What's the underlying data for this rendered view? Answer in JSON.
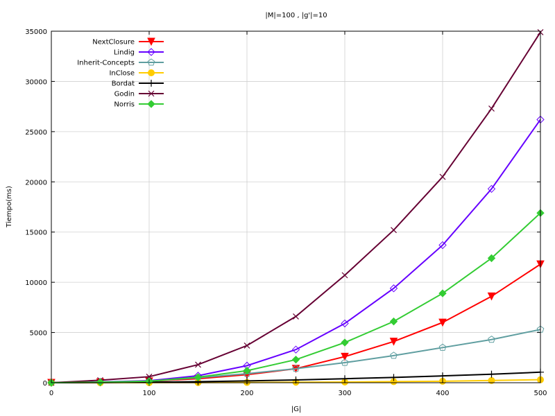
{
  "chart_data": {
    "type": "line",
    "title": "|M|=100 , |g'|=10",
    "xlabel": "|G|",
    "ylabel": "Tiempo(ms)",
    "xlim": [
      0,
      500
    ],
    "ylim": [
      0,
      35000
    ],
    "x_ticks": [
      0,
      100,
      200,
      300,
      400,
      500
    ],
    "y_ticks": [
      0,
      5000,
      10000,
      15000,
      20000,
      25000,
      30000,
      35000
    ],
    "grid": true,
    "legend_position": "top-left",
    "x": [
      0,
      50,
      100,
      150,
      200,
      250,
      300,
      350,
      400,
      450,
      500
    ],
    "series": [
      {
        "name": "NextClosure",
        "color": "#ff0000",
        "marker": "triangle-down",
        "values": [
          0,
          50,
          150,
          400,
          800,
          1400,
          2600,
          4100,
          6000,
          8600,
          11800
        ]
      },
      {
        "name": "Lindig",
        "color": "#6600ff",
        "marker": "diamond-open",
        "values": [
          0,
          80,
          200,
          700,
          1700,
          3300,
          5900,
          9400,
          13700,
          19300,
          26200
        ]
      },
      {
        "name": "Inherit-Concepts",
        "color": "#5f9ea0",
        "marker": "pentagon-open",
        "values": [
          0,
          40,
          150,
          500,
          900,
          1400,
          2000,
          2700,
          3500,
          4300,
          5300
        ]
      },
      {
        "name": "InClose",
        "color": "#ffcc00",
        "marker": "circle",
        "values": [
          0,
          5,
          10,
          20,
          30,
          50,
          70,
          110,
          150,
          220,
          300
        ]
      },
      {
        "name": "Bordat",
        "color": "#000000",
        "marker": "plus",
        "values": [
          0,
          20,
          50,
          100,
          180,
          280,
          400,
          530,
          680,
          850,
          1050
        ]
      },
      {
        "name": "Godin",
        "color": "#660033",
        "marker": "cross",
        "values": [
          0,
          250,
          600,
          1800,
          3700,
          6600,
          10700,
          15200,
          20500,
          27300,
          34900
        ]
      },
      {
        "name": "Norris",
        "color": "#33cc33",
        "marker": "diamond",
        "values": [
          0,
          60,
          150,
          550,
          1200,
          2300,
          4000,
          6100,
          8900,
          12400,
          16900
        ]
      }
    ]
  }
}
